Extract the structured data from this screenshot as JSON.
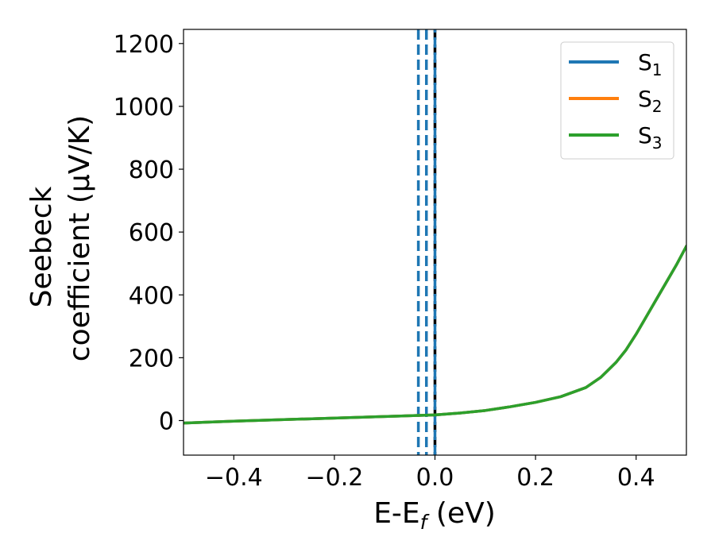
{
  "chart_data": {
    "type": "line",
    "xlabel": "E-E",
    "xlabel_subscript": "f",
    "xlabel_unit": " (eV)",
    "ylabel_line1": "Seebeck",
    "ylabel_line2": "coefficient  (μV/K)",
    "xlim": [
      -0.5,
      0.5
    ],
    "ylim": [
      -110,
      1245
    ],
    "xticks": [
      -0.4,
      -0.2,
      0.0,
      0.2,
      0.4
    ],
    "xtick_labels": [
      "−0.4",
      "−0.2",
      "0.0",
      "0.2",
      "0.4"
    ],
    "yticks": [
      0,
      200,
      400,
      600,
      800,
      1000,
      1200
    ],
    "ytick_labels": [
      "0",
      "200",
      "400",
      "600",
      "800",
      "1000",
      "1200"
    ],
    "grid": false,
    "legend_position": "top-right",
    "series": [
      {
        "name": "S",
        "subscript": "1",
        "color": "#1f77b4",
        "x": [
          -0.5,
          -0.4,
          -0.3,
          -0.2,
          -0.1,
          0.0,
          0.05,
          0.1,
          0.15,
          0.2,
          0.25,
          0.3,
          0.33,
          0.36,
          0.38,
          0.4,
          0.42,
          0.44,
          0.46,
          0.48,
          0.5
        ],
        "y": [
          -8,
          -2,
          3,
          8,
          13,
          18,
          24,
          32,
          44,
          58,
          76,
          105,
          138,
          185,
          225,
          275,
          330,
          385,
          440,
          495,
          555
        ]
      },
      {
        "name": "S",
        "subscript": "2",
        "color": "#ff7f0e",
        "x": [
          -0.5,
          -0.4,
          -0.3,
          -0.2,
          -0.1,
          0.0,
          0.05,
          0.1,
          0.15,
          0.2,
          0.25,
          0.3,
          0.33,
          0.36,
          0.38,
          0.4,
          0.42,
          0.44,
          0.46,
          0.48,
          0.5
        ],
        "y": [
          -8,
          -2,
          3,
          8,
          13,
          18,
          24,
          32,
          44,
          58,
          76,
          105,
          138,
          185,
          225,
          275,
          330,
          385,
          440,
          495,
          555
        ]
      },
      {
        "name": "S",
        "subscript": "3",
        "color": "#2ca02c",
        "x": [
          -0.5,
          -0.4,
          -0.3,
          -0.2,
          -0.1,
          0.0,
          0.05,
          0.1,
          0.15,
          0.2,
          0.25,
          0.3,
          0.33,
          0.36,
          0.38,
          0.4,
          0.42,
          0.44,
          0.46,
          0.48,
          0.5
        ],
        "y": [
          -8,
          -2,
          3,
          8,
          13,
          18,
          24,
          32,
          44,
          58,
          76,
          105,
          138,
          185,
          225,
          275,
          330,
          385,
          440,
          495,
          555
        ]
      }
    ],
    "vertical_lines": [
      {
        "x": -0.033,
        "color": "#1f77b4",
        "style": "dashed"
      },
      {
        "x": -0.017,
        "color": "#1f77b4",
        "style": "dashed"
      },
      {
        "x": 0.0,
        "color": "#000000",
        "style": "dashed"
      },
      {
        "x": 0.0,
        "color": "#1f77b4",
        "style": "dashed"
      }
    ]
  }
}
